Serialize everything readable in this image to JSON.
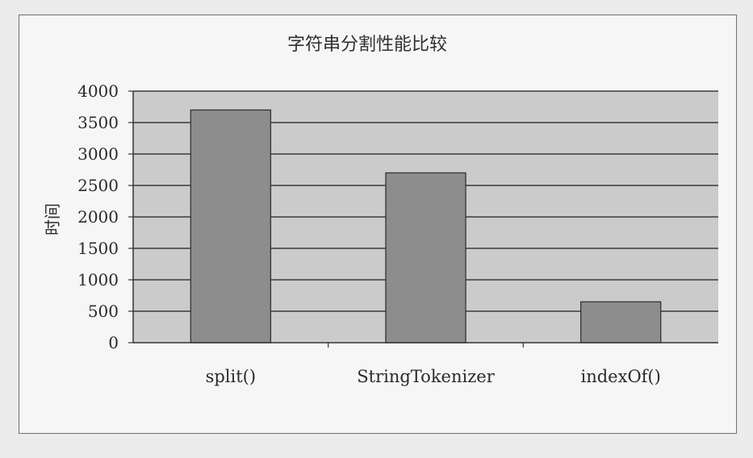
{
  "chart_data": {
    "type": "bar",
    "title": "字符串分割性能比较",
    "xlabel": "",
    "ylabel": "时间",
    "categories": [
      "split()",
      "StringTokenizer",
      "indexOf()"
    ],
    "values": [
      3700,
      2700,
      650
    ],
    "ylim": [
      0,
      4000
    ],
    "yticks": [
      0,
      500,
      1000,
      1500,
      2000,
      2500,
      3000,
      3500,
      4000
    ],
    "grid": true,
    "legend": "none",
    "colors": {
      "bar": "#8d8d8d",
      "plot_bg": "#cbcbcb",
      "grid": "#3a3a3a"
    }
  }
}
